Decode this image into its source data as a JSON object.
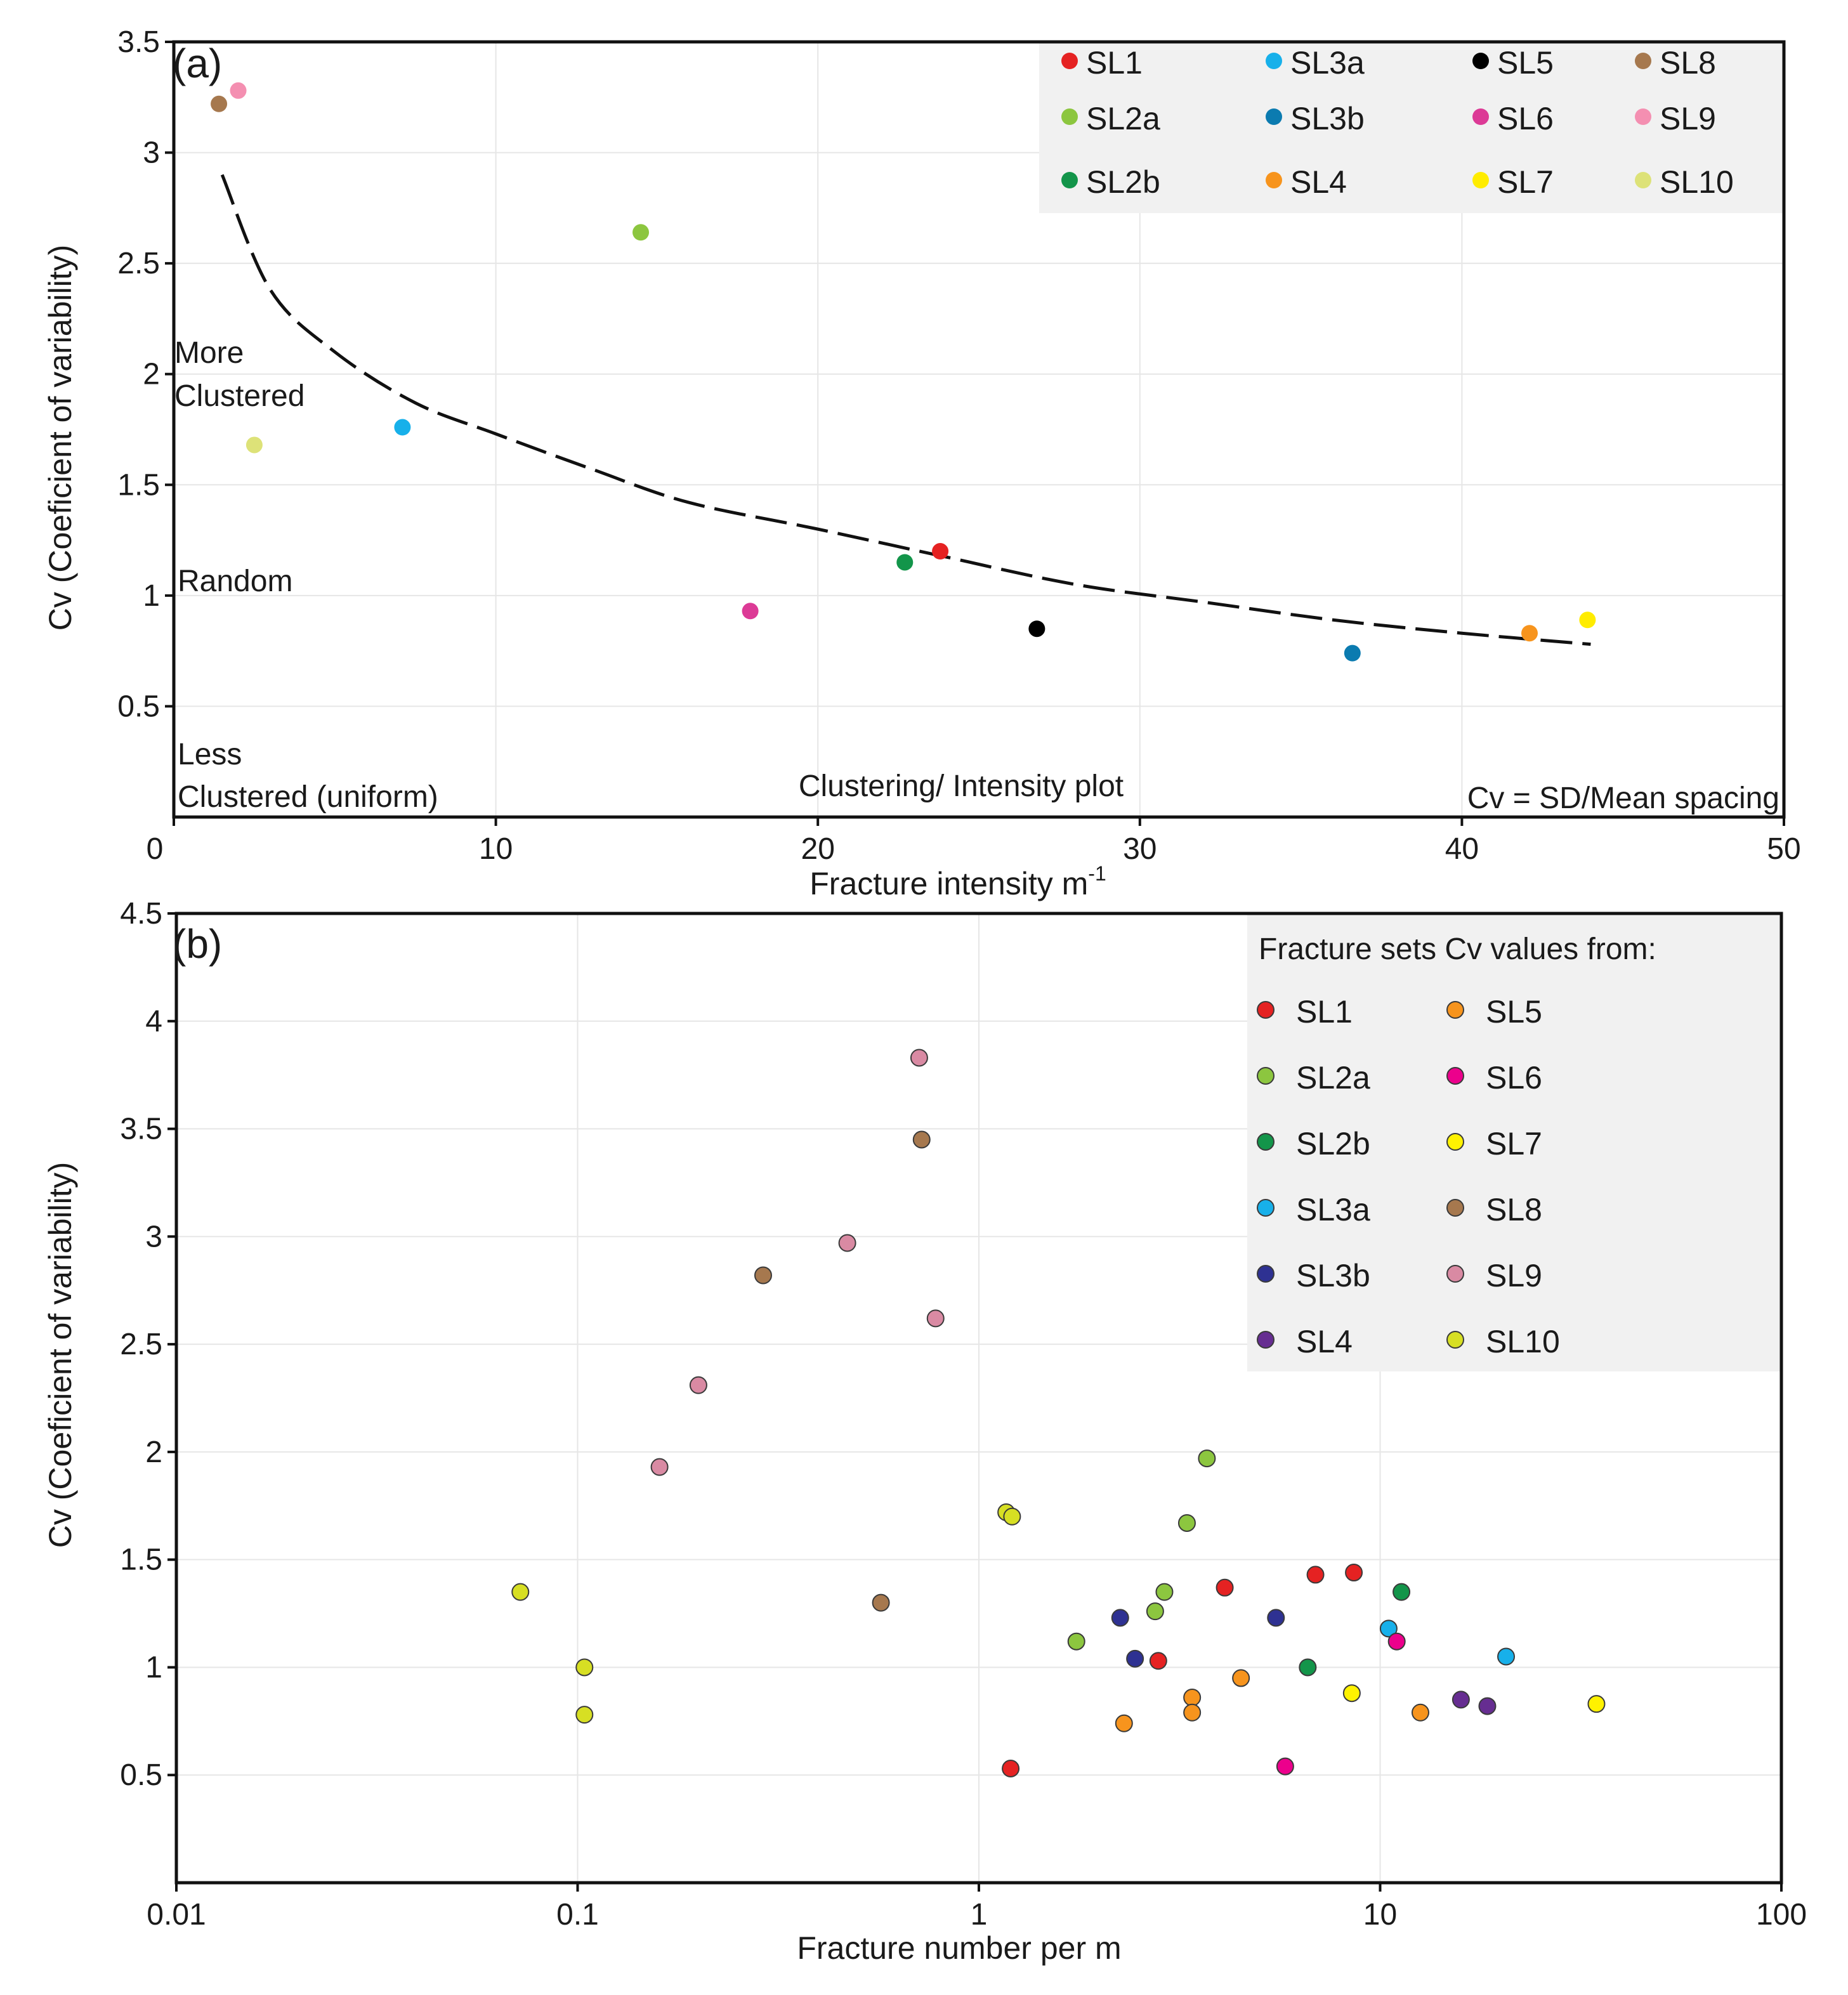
{
  "chart_data": [
    {
      "panel_label": "(a)",
      "type": "scatter",
      "title": "Clustering/ Intensity plot",
      "xlabel": "Fracture intensity m",
      "xlabel_sup": "-1",
      "ylabel": "Cv (Coeficient of variability)",
      "xlim": [
        0,
        50
      ],
      "ylim": [
        0,
        3.5
      ],
      "xticks": [
        0,
        10,
        20,
        30,
        40,
        50
      ],
      "yticks": [
        0.5,
        1,
        1.5,
        2,
        2.5,
        3,
        3.5
      ],
      "grid": true,
      "legend_position": "top-right",
      "annotations": {
        "more_clustered": [
          "More",
          "Clustered"
        ],
        "random": "Random",
        "less_clustered": [
          "Less",
          "Clustered (uniform)"
        ],
        "formula": "Cv = SD/Mean spacing"
      },
      "fit_curve": {
        "style": "dashed",
        "x": [
          1.5,
          3,
          5,
          7.5,
          10,
          13,
          16,
          20,
          23.8,
          28,
          32,
          36,
          40,
          44
        ],
        "y": [
          2.9,
          2.38,
          2.1,
          1.87,
          1.73,
          1.57,
          1.42,
          1.3,
          1.18,
          1.05,
          0.97,
          0.89,
          0.83,
          0.78
        ]
      },
      "series": [
        {
          "name": "SL1",
          "color": "#e52222",
          "x": [
            23.8
          ],
          "y": [
            1.2
          ]
        },
        {
          "name": "SL3a",
          "color": "#17b0ea",
          "x": [
            7.1
          ],
          "y": [
            1.76
          ]
        },
        {
          "name": "SL5",
          "color": "#000000",
          "x": [
            26.8
          ],
          "y": [
            0.85
          ]
        },
        {
          "name": "SL8",
          "color": "#a6784e",
          "x": [
            1.4
          ],
          "y": [
            3.22
          ]
        },
        {
          "name": "SL2a",
          "color": "#8cc63f",
          "x": [
            14.5
          ],
          "y": [
            2.64
          ]
        },
        {
          "name": "SL3b",
          "color": "#0b7bb0",
          "x": [
            36.6
          ],
          "y": [
            0.74
          ]
        },
        {
          "name": "SL6",
          "color": "#dc3a96",
          "x": [
            17.9
          ],
          "y": [
            0.93
          ]
        },
        {
          "name": "SL9",
          "color": "#f48fb1",
          "x": [
            2.0
          ],
          "y": [
            3.28
          ]
        },
        {
          "name": "SL2b",
          "color": "#13954a",
          "x": [
            22.7
          ],
          "y": [
            1.15
          ]
        },
        {
          "name": "SL4",
          "color": "#f7941d",
          "x": [
            42.1
          ],
          "y": [
            0.83
          ]
        },
        {
          "name": "SL7",
          "color": "#ffec00",
          "x": [
            43.9
          ],
          "y": [
            0.89
          ]
        },
        {
          "name": "SL10",
          "color": "#dde278",
          "x": [
            2.5
          ],
          "y": [
            1.68
          ]
        }
      ]
    },
    {
      "panel_label": "(b)",
      "type": "scatter",
      "xscale": "log",
      "xlabel": "Fracture number per m",
      "ylabel": "Cv (Coeficient of variability)",
      "xlim": [
        0.01,
        100
      ],
      "ylim": [
        0,
        4.5
      ],
      "xticks": [
        0.01,
        0.1,
        1,
        10,
        100
      ],
      "xtick_labels": [
        "0.01",
        "0.1",
        "1",
        "10",
        "100"
      ],
      "yticks": [
        0.5,
        1,
        1.5,
        2,
        2.5,
        3,
        3.5,
        4,
        4.5
      ],
      "grid": true,
      "legend_title": "Fracture sets Cv values from:",
      "legend_position": "top-right",
      "series": [
        {
          "name": "SL1",
          "color": "#e52222",
          "x": [
            4.1,
            6.9,
            8.6,
            2.8,
            1.2
          ],
          "y": [
            1.37,
            1.43,
            1.44,
            1.03,
            0.53
          ]
        },
        {
          "name": "SL2a",
          "color": "#8cc63f",
          "x": [
            3.7,
            3.3,
            2.9,
            2.75,
            1.75
          ],
          "y": [
            1.97,
            1.67,
            1.35,
            1.26,
            1.12
          ]
        },
        {
          "name": "SL2b",
          "color": "#13954a",
          "x": [
            11.3,
            6.6
          ],
          "y": [
            1.35,
            1.0
          ]
        },
        {
          "name": "SL3a",
          "color": "#17b0ea",
          "x": [
            10.5,
            20.6
          ],
          "y": [
            1.18,
            1.05
          ]
        },
        {
          "name": "SL3b",
          "color": "#2e3192",
          "x": [
            2.25,
            5.5,
            2.45
          ],
          "y": [
            1.23,
            1.23,
            1.04
          ]
        },
        {
          "name": "SL4",
          "color": "#662d91",
          "x": [
            15.9,
            18.5
          ],
          "y": [
            0.85,
            0.82
          ]
        },
        {
          "name": "SL5",
          "color": "#f7941d",
          "x": [
            4.5,
            3.4,
            3.4,
            2.3,
            12.6
          ],
          "y": [
            0.95,
            0.86,
            0.79,
            0.74,
            0.79
          ]
        },
        {
          "name": "SL6",
          "color": "#ec008c",
          "x": [
            11.0,
            5.8
          ],
          "y": [
            1.12,
            0.54
          ]
        },
        {
          "name": "SL7",
          "color": "#fff200",
          "x": [
            8.5,
            34.6
          ],
          "y": [
            0.88,
            0.83
          ]
        },
        {
          "name": "SL8",
          "color": "#a6784e",
          "x": [
            0.72,
            0.29,
            0.57
          ],
          "y": [
            3.45,
            2.82,
            1.3
          ]
        },
        {
          "name": "SL9",
          "color": "#d98aa3",
          "x": [
            0.71,
            0.47,
            0.78,
            0.2,
            0.16
          ],
          "y": [
            3.83,
            2.97,
            2.62,
            2.31,
            1.93
          ]
        },
        {
          "name": "SL10",
          "color": "#d7df23",
          "x": [
            1.17,
            1.21,
            0.072,
            0.104,
            0.104
          ],
          "y": [
            1.72,
            1.7,
            1.35,
            1.0,
            0.78
          ]
        }
      ]
    }
  ]
}
